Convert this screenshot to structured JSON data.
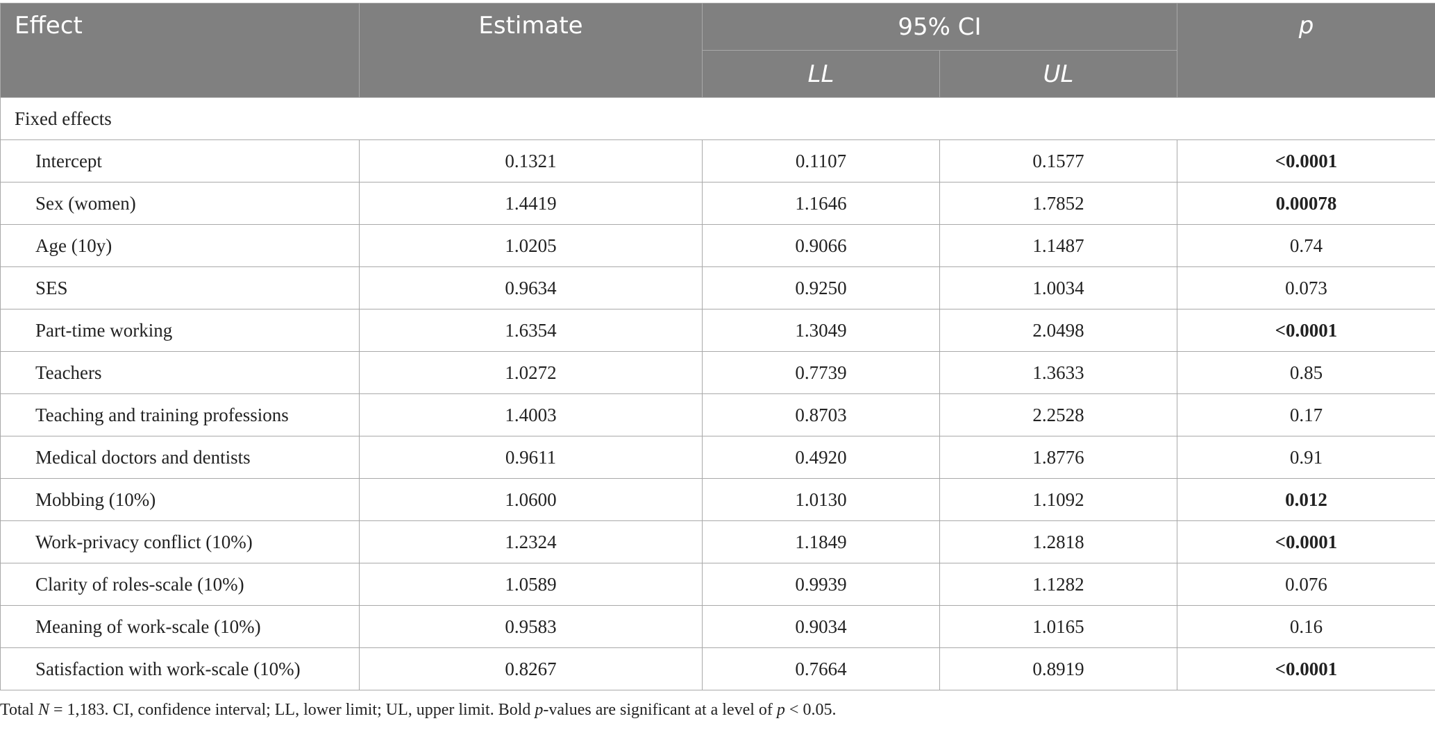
{
  "table": {
    "headers": {
      "effect": "Effect",
      "estimate": "Estimate",
      "ci": "95% CI",
      "ll": "LL",
      "ul": "UL",
      "p": "p"
    },
    "section_label": "Fixed effects",
    "rows": [
      {
        "effect": "Intercept",
        "estimate": "0.1321",
        "ll": "0.1107",
        "ul": "0.1577",
        "p": "<0.0001",
        "significant": true
      },
      {
        "effect": "Sex (women)",
        "estimate": "1.4419",
        "ll": "1.1646",
        "ul": "1.7852",
        "p": "0.00078",
        "significant": true
      },
      {
        "effect": "Age (10y)",
        "estimate": "1.0205",
        "ll": "0.9066",
        "ul": "1.1487",
        "p": "0.74",
        "significant": false
      },
      {
        "effect": "SES",
        "estimate": "0.9634",
        "ll": "0.9250",
        "ul": "1.0034",
        "p": "0.073",
        "significant": false
      },
      {
        "effect": "Part-time working",
        "estimate": "1.6354",
        "ll": "1.3049",
        "ul": "2.0498",
        "p": "<0.0001",
        "significant": true
      },
      {
        "effect": "Teachers",
        "estimate": "1.0272",
        "ll": "0.7739",
        "ul": "1.3633",
        "p": "0.85",
        "significant": false
      },
      {
        "effect": "Teaching and training professions",
        "estimate": "1.4003",
        "ll": "0.8703",
        "ul": "2.2528",
        "p": "0.17",
        "significant": false
      },
      {
        "effect": "Medical doctors and dentists",
        "estimate": "0.9611",
        "ll": "0.4920",
        "ul": "1.8776",
        "p": "0.91",
        "significant": false
      },
      {
        "effect": "Mobbing (10%)",
        "estimate": "1.0600",
        "ll": "1.0130",
        "ul": "1.1092",
        "p": "0.012",
        "significant": true
      },
      {
        "effect": "Work-privacy conflict (10%)",
        "estimate": "1.2324",
        "ll": "1.1849",
        "ul": "1.2818",
        "p": "<0.0001",
        "significant": true
      },
      {
        "effect": "Clarity of roles-scale (10%)",
        "estimate": "1.0589",
        "ll": "0.9939",
        "ul": "1.1282",
        "p": "0.076",
        "significant": false
      },
      {
        "effect": "Meaning of work-scale (10%)",
        "estimate": "0.9583",
        "ll": "0.9034",
        "ul": "1.0165",
        "p": "0.16",
        "significant": false
      },
      {
        "effect": "Satisfaction with work-scale (10%)",
        "estimate": "0.8267",
        "ll": "0.7664",
        "ul": "0.8919",
        "p": "<0.0001",
        "significant": true
      }
    ]
  },
  "footnote": {
    "part1": "Total ",
    "n_symbol": "N",
    "part2": " = 1,183. CI, confidence interval; LL, lower limit; UL, upper limit. Bold ",
    "p_symbol": "p",
    "part3": "-values are significant at a level of ",
    "p_symbol2": "p",
    "part4": " < 0.05."
  },
  "colors": {
    "header_bg": "#808080",
    "header_text": "#ffffff",
    "grid_line": "#a9a9a9",
    "body_text": "#222222"
  }
}
